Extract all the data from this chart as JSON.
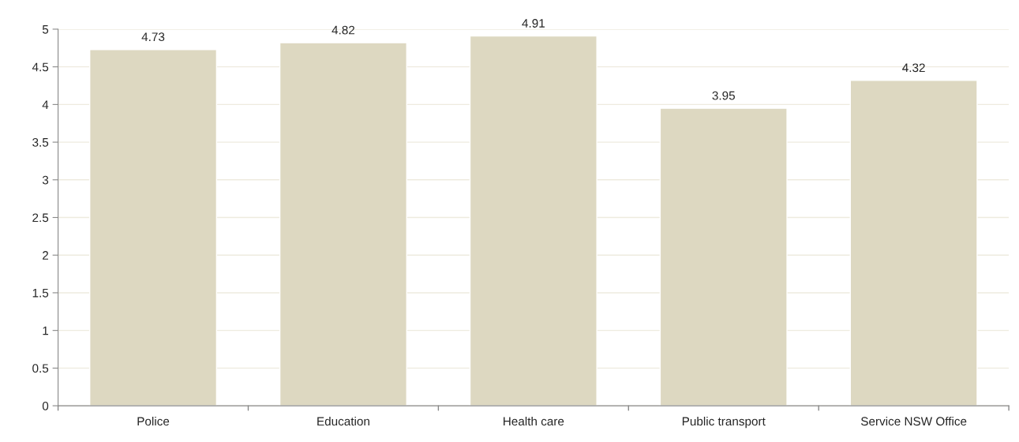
{
  "chart_data": {
    "type": "bar",
    "categories": [
      "Police",
      "Education",
      "Health care",
      "Public transport",
      "Service NSW Office"
    ],
    "values": [
      4.73,
      4.82,
      4.91,
      3.95,
      4.32
    ],
    "color": "#ddd8c1",
    "ylim": [
      0,
      5
    ],
    "yticks": [
      0,
      0.5,
      1,
      1.5,
      2,
      2.5,
      3,
      3.5,
      4,
      4.5,
      5
    ],
    "grid": "y",
    "data_labels": true,
    "legend": false
  }
}
